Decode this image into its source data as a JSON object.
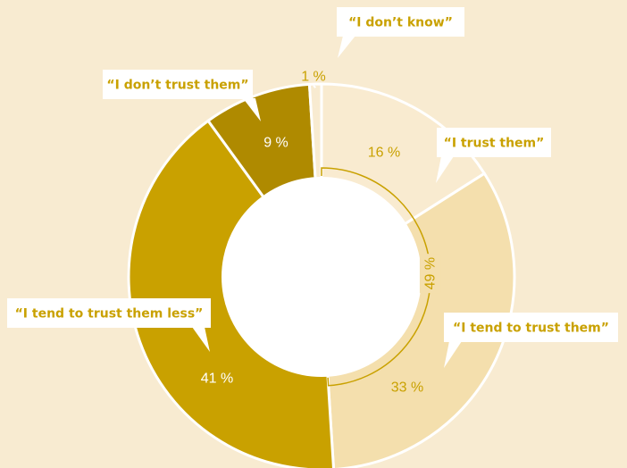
{
  "chart_data": {
    "type": "pie",
    "variant": "donut",
    "categories": [
      "“I trust them”",
      "“I tend to trust them”",
      "“I tend to trust them less”",
      "“I don’t trust them”",
      "“I don’t know”"
    ],
    "values": [
      16,
      33,
      41,
      9,
      1
    ],
    "value_labels": [
      "16 %",
      "33 %",
      "41 %",
      "9 %",
      "1 %"
    ],
    "slice_colors": [
      "#f9ebd0",
      "#f4dfad",
      "#c9a100",
      "#af8a00",
      "#f8ebd1"
    ],
    "label_colors": [
      "#c9a100",
      "#c9a100",
      "#ffffff",
      "#ffffff",
      "#c9a100"
    ],
    "bracket": {
      "label": "49 %",
      "span": [
        "“I trust them”",
        "“I tend to trust them”"
      ]
    },
    "callout_color": "#c9a100",
    "callout_bg": "#ffffff",
    "legend": "callouts"
  }
}
